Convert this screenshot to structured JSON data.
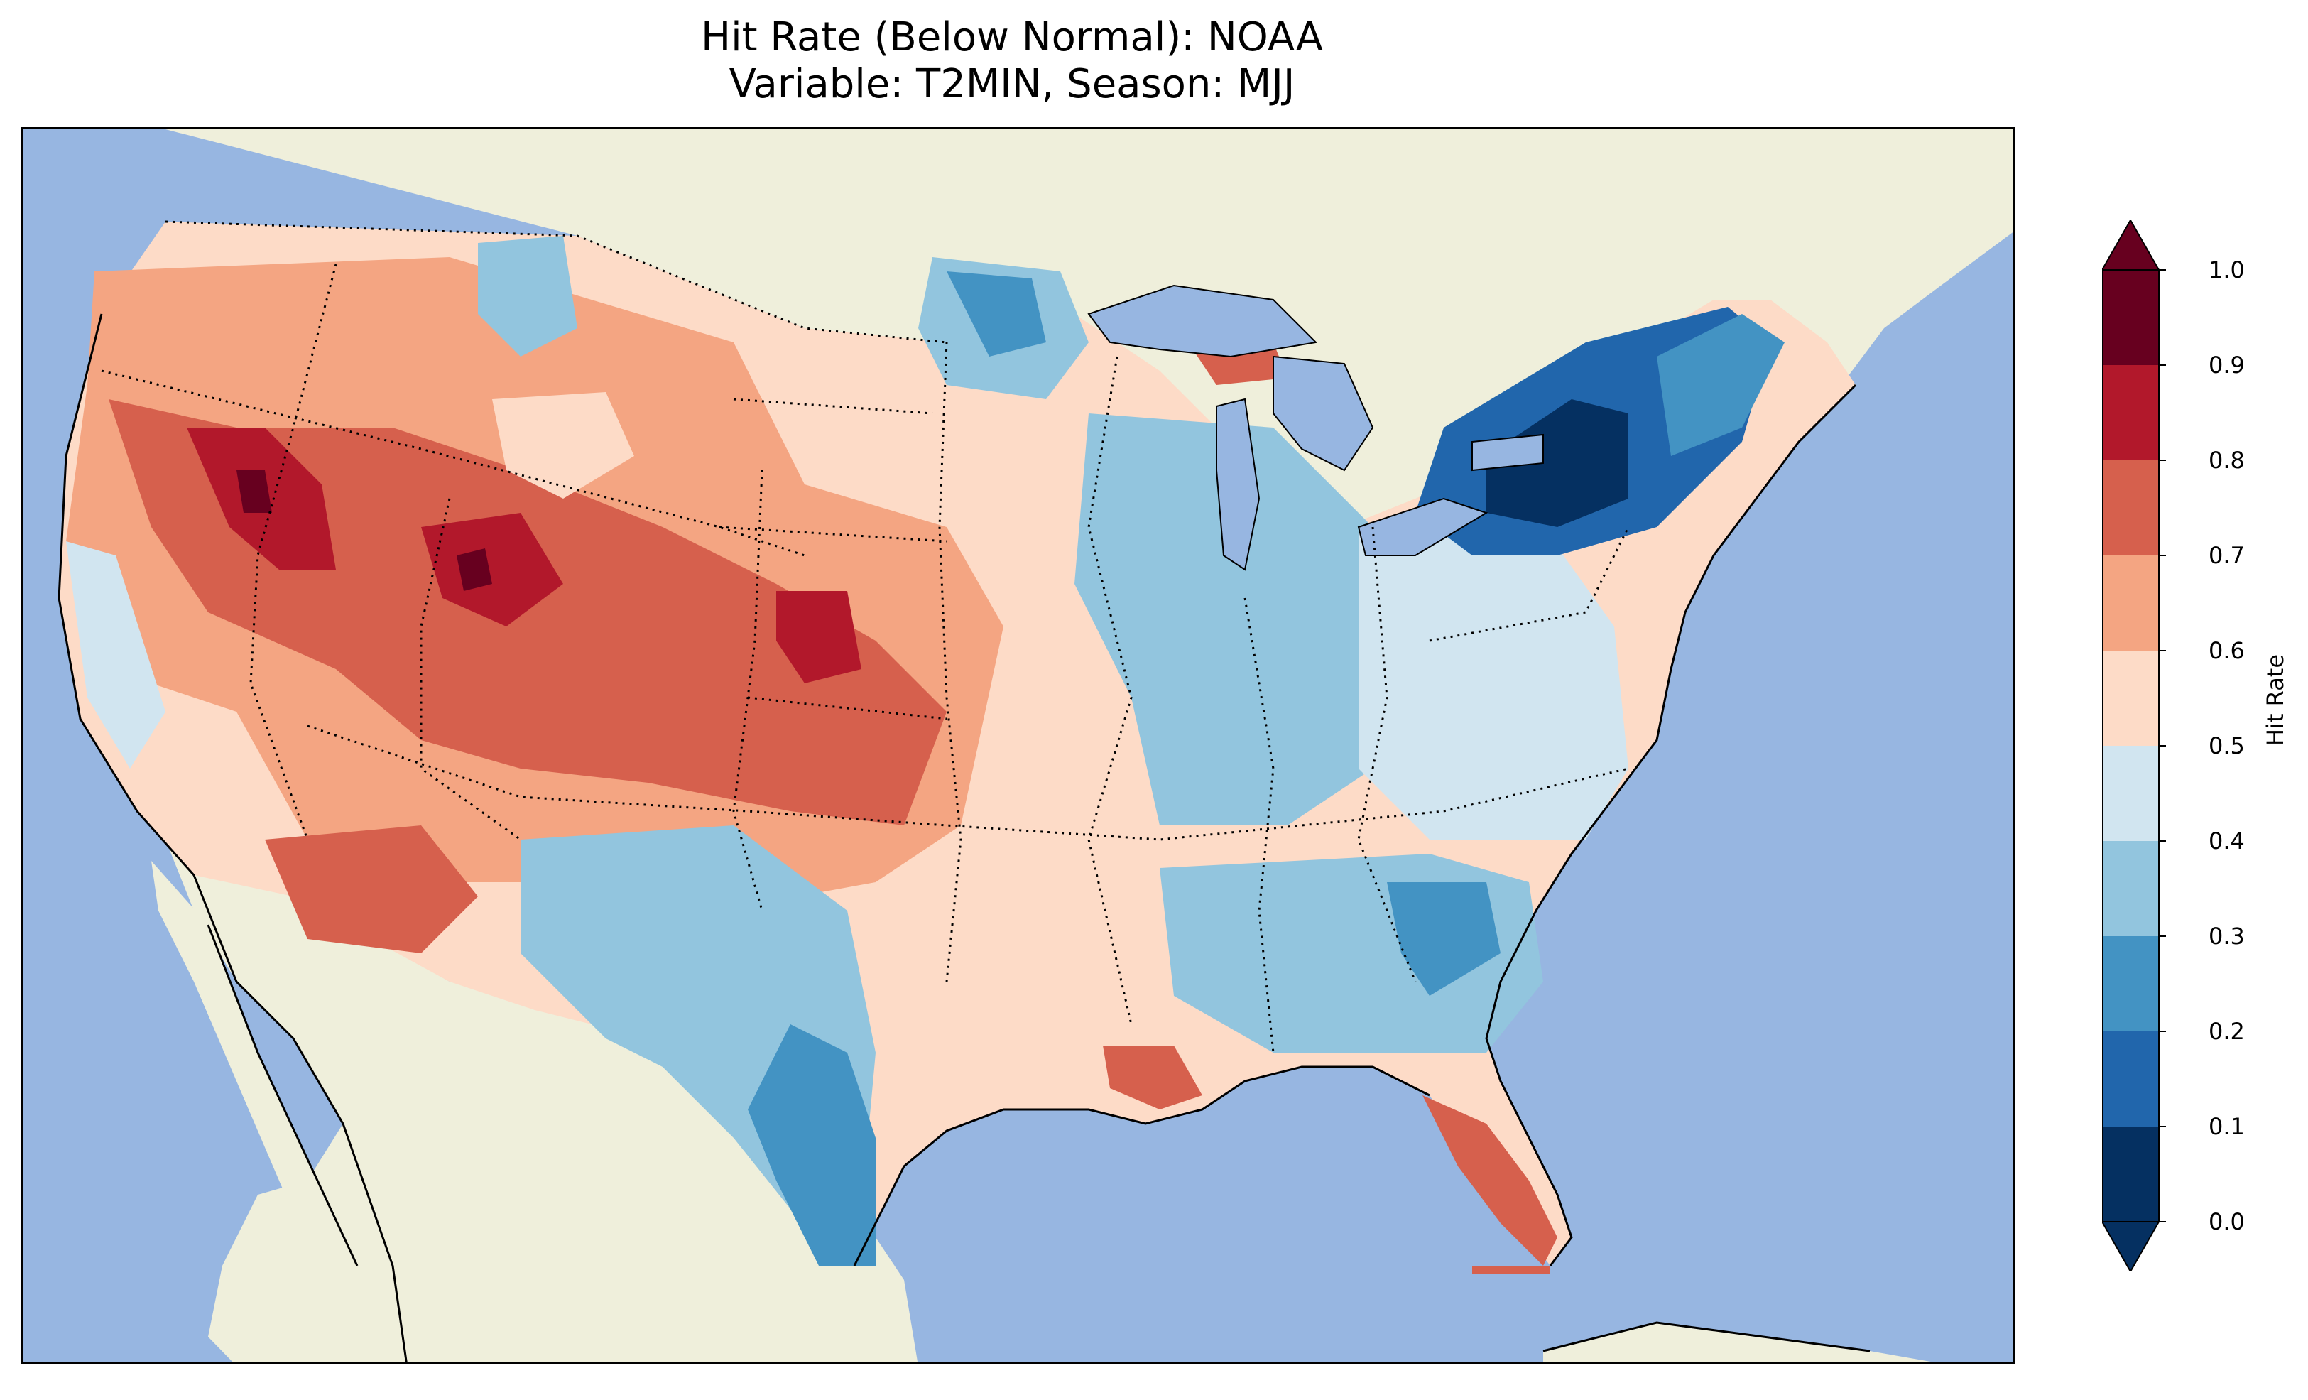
{
  "title": {
    "line1": "Hit Rate (Below Normal): NOAA",
    "line2": "Variable: T2MIN, Season: MJJ"
  },
  "colors": {
    "ocean": "#97b6e1",
    "land": "#efefdb",
    "lakes": "#97b6e1",
    "border": "#000000"
  },
  "colorbar": {
    "label": "Hit Rate",
    "ticks": [
      "0.0",
      "0.1",
      "0.2",
      "0.3",
      "0.4",
      "0.5",
      "0.6",
      "0.7",
      "0.8",
      "0.9",
      "1.0"
    ],
    "bins": [
      "#053061",
      "#2166ac",
      "#4393c3",
      "#92c5de",
      "#d1e5f0",
      "#fddbc7",
      "#f4a582",
      "#d6604d",
      "#b2182b",
      "#67001f"
    ],
    "extend": "both",
    "range": [
      0.0,
      1.0
    ]
  }
}
